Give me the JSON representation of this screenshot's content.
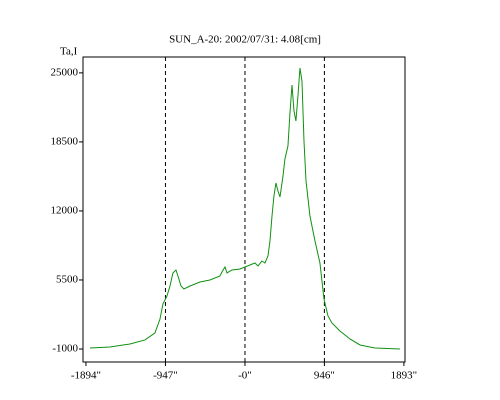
{
  "chart_data": {
    "type": "line",
    "title": "SUN_A-20: 2002/07/31: 4.08[cm]",
    "y_label": "Ta,I",
    "x": [
      -1846,
      -1608,
      -1370,
      -1191,
      -1072,
      -1012,
      -977,
      -929,
      -893,
      -858,
      -822,
      -798,
      -762,
      -727,
      -655,
      -536,
      -417,
      -298,
      -274,
      -238,
      -214,
      -155,
      -60,
      60,
      119,
      155,
      202,
      238,
      274,
      298,
      322,
      345,
      369,
      393,
      417,
      453,
      476,
      512,
      536,
      560,
      584,
      607,
      631,
      655,
      679,
      703,
      727,
      774,
      834,
      893,
      941,
      989,
      1036,
      1131,
      1251,
      1370,
      1548,
      1846
    ],
    "series": [
      {
        "color": "#109010",
        "values": [
          -900,
          -810,
          -530,
          -150,
          510,
          1825,
          3238,
          3991,
          4933,
          6157,
          6440,
          5875,
          4933,
          4651,
          4933,
          5310,
          5498,
          5875,
          6252,
          6722,
          6157,
          6440,
          6534,
          6910,
          7099,
          6816,
          7287,
          7099,
          7758,
          9170,
          11524,
          13407,
          14631,
          13878,
          13313,
          15290,
          16891,
          18115,
          21222,
          23859,
          21410,
          20469,
          22823,
          25459,
          24235,
          18586,
          14820,
          11524,
          9170,
          7099,
          3709,
          2108,
          1449,
          696,
          -57,
          -622,
          -904,
          -998
        ]
      }
    ],
    "xlim": [
      -1929,
      1906
    ],
    "ylim": [
      -2224,
      26495
    ],
    "xticks": [
      {
        "value": -1894,
        "label": "-1894\""
      },
      {
        "value": -947,
        "label": "-947\""
      },
      {
        "value": 0,
        "label": "-0\""
      },
      {
        "value": 946,
        "label": "946\""
      },
      {
        "value": 1893,
        "label": "1893\""
      }
    ],
    "yticks": [
      -1000,
      5500,
      12000,
      18500,
      25000
    ],
    "vlines": [
      -947,
      0,
      946
    ]
  }
}
